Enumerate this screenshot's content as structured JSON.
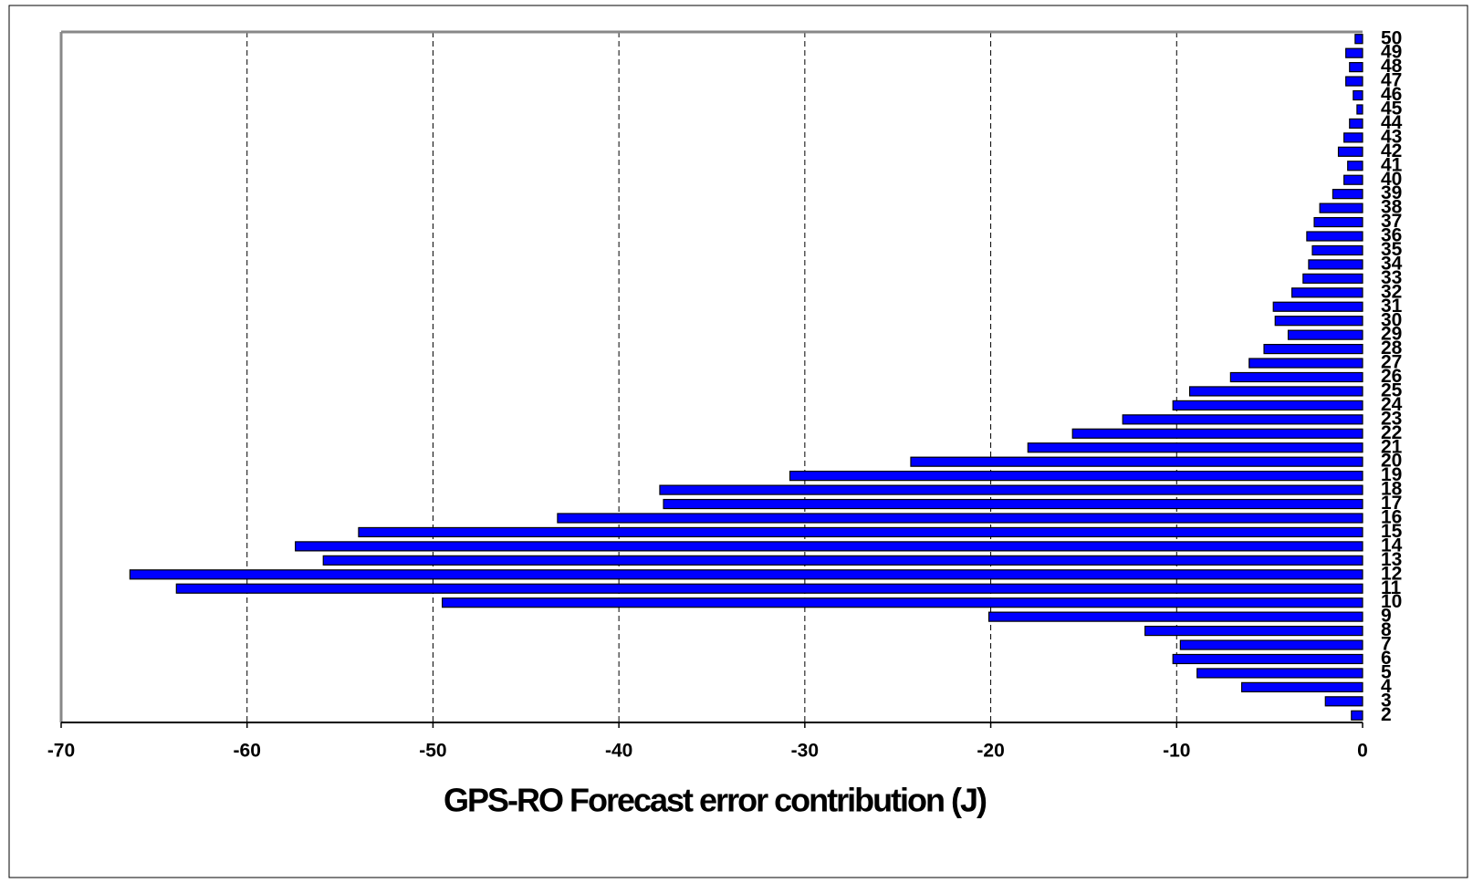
{
  "chart_data": {
    "type": "barh",
    "xlabel": "GPS-RO Forecast error contribution (J)",
    "categories": [
      "2",
      "3",
      "4",
      "5",
      "6",
      "7",
      "8",
      "9",
      "10",
      "11",
      "12",
      "13",
      "14",
      "15",
      "16",
      "17",
      "18",
      "19",
      "20",
      "21",
      "22",
      "23",
      "24",
      "25",
      "26",
      "27",
      "28",
      "29",
      "30",
      "31",
      "32",
      "33",
      "34",
      "35",
      "36",
      "37",
      "38",
      "39",
      "40",
      "41",
      "42",
      "43",
      "44",
      "45",
      "46",
      "47",
      "48",
      "49",
      "50"
    ],
    "values": [
      -0.6,
      -2.0,
      -6.5,
      -8.9,
      -10.2,
      -9.8,
      -11.7,
      -20.1,
      -49.5,
      -63.8,
      -66.3,
      -55.9,
      -57.4,
      -54.0,
      -43.3,
      -37.6,
      -37.8,
      -30.8,
      -24.3,
      -18.0,
      -15.6,
      -12.9,
      -10.2,
      -9.3,
      -7.1,
      -6.1,
      -5.3,
      -4.0,
      -4.7,
      -4.8,
      -3.8,
      -3.2,
      -2.9,
      -2.7,
      -3.0,
      -2.6,
      -2.3,
      -1.6,
      -1.0,
      -0.8,
      -1.3,
      -1.0,
      -0.7,
      -0.3,
      -0.5,
      -0.9,
      -0.7,
      -0.9,
      -0.4
    ],
    "color": "#0000ff",
    "xlim": [
      -70,
      0
    ],
    "xticks": [
      -70,
      -60,
      -50,
      -40,
      -30,
      -20,
      -10,
      0
    ],
    "grid": true
  }
}
